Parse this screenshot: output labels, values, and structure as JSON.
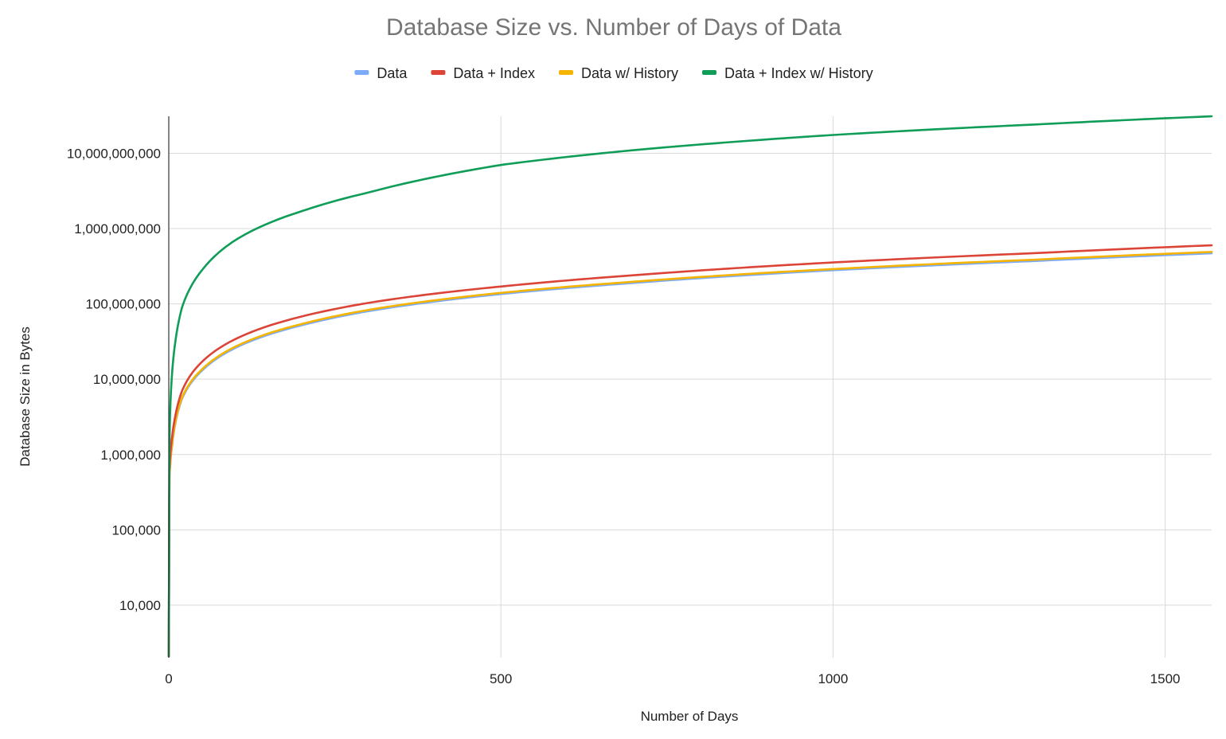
{
  "chart_data": {
    "type": "line",
    "title": "Database Size vs. Number of Days of Data",
    "xlabel": "Number of Days",
    "ylabel": "Database Size in Bytes",
    "x_scale": "linear",
    "y_scale": "log",
    "xlim": [
      0,
      1570
    ],
    "ylim": [
      2000,
      31000000000
    ],
    "x_ticks": [
      0,
      500,
      1000,
      1500
    ],
    "x_tick_labels": [
      "0",
      "500",
      "1000",
      "1500"
    ],
    "y_ticks": [
      10000,
      100000,
      1000000,
      10000000,
      100000000,
      1000000000,
      10000000000
    ],
    "y_tick_labels": [
      "10,000",
      "100,000",
      "1,000,000",
      "10,000,000",
      "100,000,000",
      "1,000,000,000",
      "10,000,000,000"
    ],
    "grid": true,
    "legend_position": "top",
    "x": [
      1,
      2,
      5,
      10,
      20,
      50,
      100,
      200,
      300,
      500,
      700,
      1000,
      1300,
      1570
    ],
    "series": [
      {
        "name": "Data",
        "color": "#7baaf7",
        "values": [
          500000,
          700000,
          1300000,
          2600000,
          5500000,
          13000000,
          26000000,
          52000000,
          80000000,
          135000000,
          190000000,
          280000000,
          370000000,
          470000000
        ]
      },
      {
        "name": "Data + Index",
        "color": "#db4437",
        "values": [
          620000,
          900000,
          1700000,
          3300000,
          7000000,
          17000000,
          34000000,
          68000000,
          103000000,
          170000000,
          240000000,
          355000000,
          470000000,
          600000000
        ]
      },
      {
        "name": "Data w/ History",
        "color": "#f4b400",
        "values": [
          510000,
          720000,
          1350000,
          2700000,
          5700000,
          13500000,
          27000000,
          54000000,
          83000000,
          140000000,
          197000000,
          290000000,
          385000000,
          490000000
        ]
      },
      {
        "name": "Data + Index w/ History",
        "color": "#0f9d58",
        "values": [
          1300000,
          3500000,
          12000000,
          32000000,
          90000000,
          280000000,
          700000000,
          1700000000,
          3000000000,
          7000000000,
          11000000000,
          17500000000,
          24000000000,
          31000000000
        ]
      }
    ]
  }
}
